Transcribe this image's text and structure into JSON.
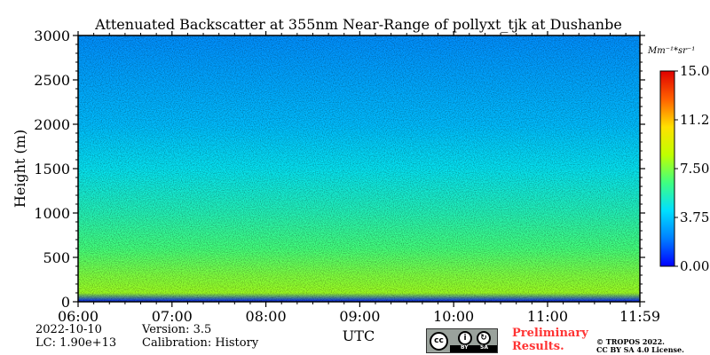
{
  "chart_data": {
    "type": "heatmap",
    "title": "Attenuated Backscatter at 355nm Near-Range of pollyxt_tjk at Dushanbe",
    "xlabel": "UTC",
    "ylabel": "Height (m)",
    "x_range": [
      "06:00",
      "11:59"
    ],
    "x_ticks": [
      "06:00",
      "07:00",
      "08:00",
      "09:00",
      "10:00",
      "11:00",
      "11:59"
    ],
    "ylim": [
      0,
      3000
    ],
    "y_ticks": [
      0,
      500,
      1000,
      1500,
      2000,
      2500,
      3000
    ],
    "colorbar": {
      "unit": "Mm⁻¹*sr⁻¹",
      "range": [
        0,
        15
      ],
      "ticks": [
        "0.00",
        "3.75",
        "7.50",
        "11.25",
        "15.00"
      ],
      "colors": [
        "#0000ff",
        "#0080ff",
        "#00e0ff",
        "#40ff80",
        "#c0ff00",
        "#ffe000",
        "#ff6000",
        "#e00000"
      ]
    },
    "profile": [
      {
        "height": 0,
        "value": 0.5
      },
      {
        "height": 100,
        "value": 8.0
      },
      {
        "height": 300,
        "value": 7.5
      },
      {
        "height": 600,
        "value": 6.5
      },
      {
        "height": 1000,
        "value": 5.5
      },
      {
        "height": 1500,
        "value": 4.5
      },
      {
        "height": 2000,
        "value": 3.5
      },
      {
        "height": 2500,
        "value": 3.0
      },
      {
        "height": 3000,
        "value": 2.5
      }
    ]
  },
  "meta": {
    "date": "2022-10-10",
    "lc": "LC: 1.90e+13",
    "version": "Version: 3.5",
    "calibration": "Calibration: History"
  },
  "notice": {
    "line1": "Preliminary",
    "line2": "Results."
  },
  "license": {
    "cc": "cc",
    "by": "BY",
    "sa": "SA",
    "line1": "© TROPOS 2022.",
    "line2": "CC BY SA 4.0 License."
  }
}
